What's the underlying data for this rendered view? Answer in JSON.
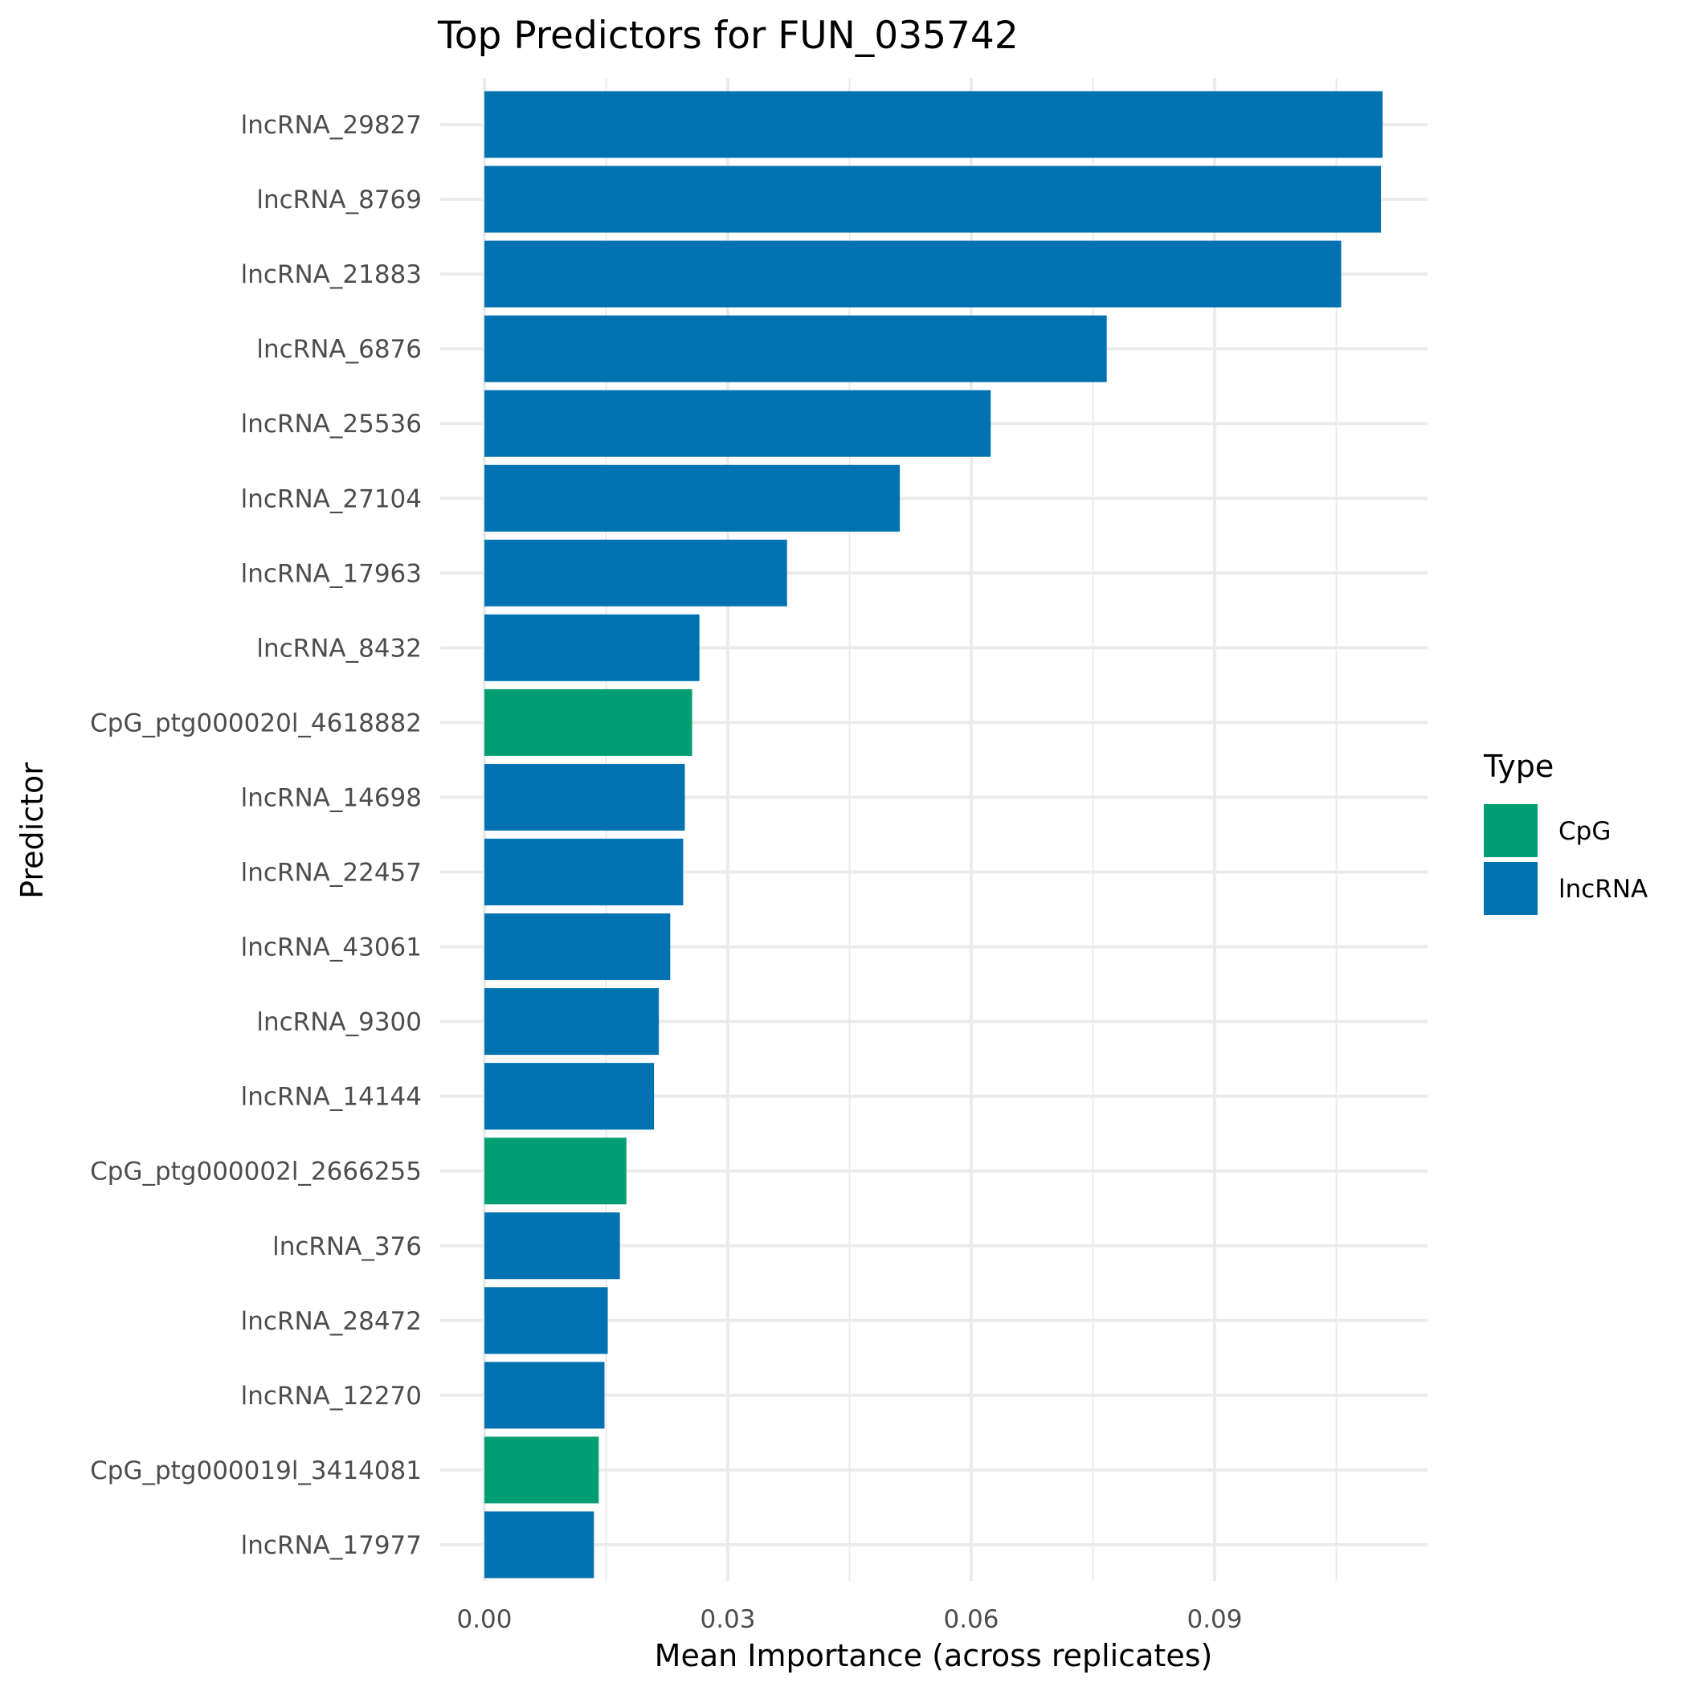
{
  "chart_data": {
    "type": "bar",
    "orientation": "horizontal",
    "title": "Top Predictors for FUN_035742",
    "xlabel": "Mean Importance (across replicates)",
    "ylabel": "Predictor",
    "xlim": [
      0,
      0.115
    ],
    "xticks": [
      "0.00",
      "0.03",
      "0.06",
      "0.09"
    ],
    "grid": true,
    "legend": {
      "title": "Type",
      "position": "right",
      "entries": [
        {
          "label": "CpG",
          "color": "#009E73"
        },
        {
          "label": "lncRNA",
          "color": "#0072B2"
        }
      ]
    },
    "categories": [
      "lncRNA_29827",
      "lncRNA_8769",
      "lncRNA_21883",
      "lncRNA_6876",
      "lncRNA_25536",
      "lncRNA_27104",
      "lncRNA_17963",
      "lncRNA_8432",
      "CpG_ptg000020l_4618882",
      "lncRNA_14698",
      "lncRNA_22457",
      "lncRNA_43061",
      "lncRNA_9300",
      "lncRNA_14144",
      "CpG_ptg000002l_2666255",
      "lncRNA_376",
      "lncRNA_28472",
      "lncRNA_12270",
      "CpG_ptg000019l_3414081",
      "lncRNA_17977"
    ],
    "types": [
      "lncRNA",
      "lncRNA",
      "lncRNA",
      "lncRNA",
      "lncRNA",
      "lncRNA",
      "lncRNA",
      "lncRNA",
      "CpG",
      "lncRNA",
      "lncRNA",
      "lncRNA",
      "lncRNA",
      "lncRNA",
      "CpG",
      "lncRNA",
      "lncRNA",
      "lncRNA",
      "CpG",
      "lncRNA"
    ],
    "values": [
      0.1107,
      0.1105,
      0.1056,
      0.0767,
      0.0624,
      0.0512,
      0.0373,
      0.0265,
      0.0256,
      0.0247,
      0.0245,
      0.0229,
      0.0215,
      0.0209,
      0.0175,
      0.0167,
      0.0152,
      0.0148,
      0.0141,
      0.0135
    ]
  }
}
